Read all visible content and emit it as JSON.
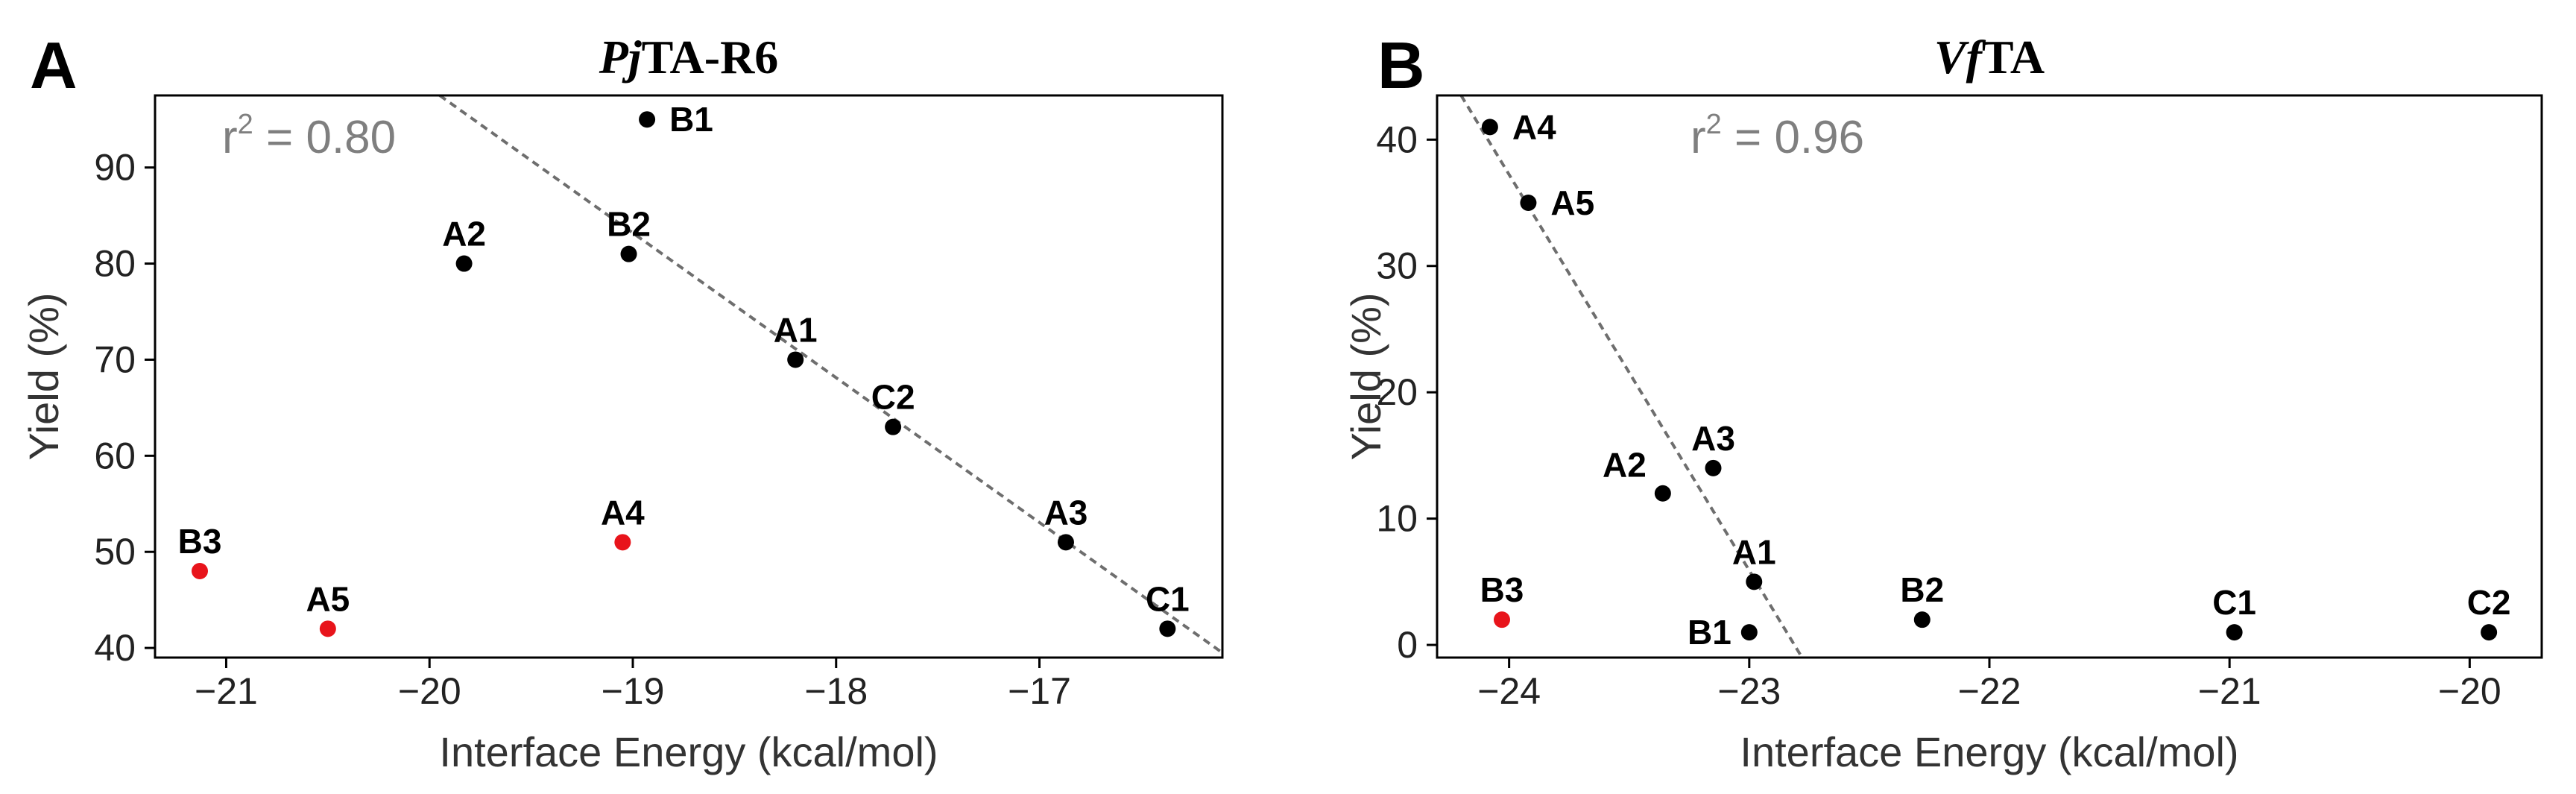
{
  "colors": {
    "axis": "#000000",
    "point_default": "#000000",
    "point_highlight": "#e8141b",
    "fit_line": "#6e6e6e",
    "r2_text": "#7f7f7f"
  },
  "chart_data": [
    {
      "type": "scatter",
      "panel_letter": "A",
      "title_italic": "Pj",
      "title_rest": "TA-R6",
      "xlabel": "Interface Energy (kcal/mol)",
      "ylabel": "Yield (%)",
      "xlim": [
        -21.35,
        -16.1
      ],
      "ylim": [
        39,
        97.5
      ],
      "xticks": [
        -21,
        -20,
        -19,
        -18,
        -17
      ],
      "xtick_labels": [
        "−21",
        "−20",
        "−19",
        "−18",
        "−17"
      ],
      "yticks": [
        40,
        50,
        60,
        70,
        80,
        90
      ],
      "ytick_labels": [
        "40",
        "50",
        "60",
        "70",
        "80",
        "90"
      ],
      "r2_label": "r",
      "r2_sup": "2",
      "r2_value": " = 0.80",
      "grid": false,
      "points": [
        {
          "label": "B1",
          "x": -18.93,
          "y": 95,
          "color": "black",
          "label_pos": "right"
        },
        {
          "label": "B2",
          "x": -19.02,
          "y": 81,
          "color": "black",
          "label_pos": "above"
        },
        {
          "label": "A2",
          "x": -19.83,
          "y": 80,
          "color": "black",
          "label_pos": "above"
        },
        {
          "label": "A1",
          "x": -18.2,
          "y": 70,
          "color": "black",
          "label_pos": "above"
        },
        {
          "label": "C2",
          "x": -17.72,
          "y": 63,
          "color": "black",
          "label_pos": "above"
        },
        {
          "label": "A3",
          "x": -16.87,
          "y": 51,
          "color": "black",
          "label_pos": "above"
        },
        {
          "label": "C1",
          "x": -16.37,
          "y": 42,
          "color": "black",
          "label_pos": "above"
        },
        {
          "label": "B3",
          "x": -21.13,
          "y": 48,
          "color": "red",
          "label_pos": "above"
        },
        {
          "label": "A5",
          "x": -20.5,
          "y": 42,
          "color": "red",
          "label_pos": "above"
        },
        {
          "label": "A4",
          "x": -19.05,
          "y": 51,
          "color": "red",
          "label_pos": "above"
        }
      ],
      "fit_line": {
        "x": [
          -19.95,
          -16.1
        ],
        "y": [
          97.5,
          39.5
        ]
      }
    },
    {
      "type": "scatter",
      "panel_letter": "B",
      "title_italic": "Vf",
      "title_rest": "TA",
      "xlabel": "Interface Energy (kcal/mol)",
      "ylabel": "Yield (%)",
      "xlim": [
        -24.3,
        -19.7
      ],
      "ylim": [
        -1,
        43.5
      ],
      "xticks": [
        -24,
        -23,
        -22,
        -21,
        -20
      ],
      "xtick_labels": [
        "−24",
        "−23",
        "−22",
        "−21",
        "−20"
      ],
      "yticks": [
        0,
        10,
        20,
        30,
        40
      ],
      "ytick_labels": [
        "0",
        "10",
        "20",
        "30",
        "40"
      ],
      "r2_label": "r",
      "r2_sup": "2",
      "r2_value": " = 0.96",
      "grid": false,
      "points": [
        {
          "label": "A4",
          "x": -24.08,
          "y": 41,
          "color": "black",
          "label_pos": "right"
        },
        {
          "label": "A5",
          "x": -23.92,
          "y": 35,
          "color": "black",
          "label_pos": "right"
        },
        {
          "label": "A3",
          "x": -23.15,
          "y": 14,
          "color": "black",
          "label_pos": "above"
        },
        {
          "label": "A2",
          "x": -23.36,
          "y": 12,
          "color": "black",
          "label_pos": "aboveleft"
        },
        {
          "label": "A1",
          "x": -22.98,
          "y": 5,
          "color": "black",
          "label_pos": "above"
        },
        {
          "label": "B1",
          "x": -23.0,
          "y": 1,
          "color": "black",
          "label_pos": "left"
        },
        {
          "label": "B2",
          "x": -22.28,
          "y": 2,
          "color": "black",
          "label_pos": "above"
        },
        {
          "label": "C1",
          "x": -20.98,
          "y": 1,
          "color": "black",
          "label_pos": "above"
        },
        {
          "label": "C2",
          "x": -19.92,
          "y": 1,
          "color": "black",
          "label_pos": "above"
        },
        {
          "label": "B3",
          "x": -24.03,
          "y": 2,
          "color": "red",
          "label_pos": "above"
        }
      ],
      "fit_line": {
        "x": [
          -24.2,
          -22.78
        ],
        "y": [
          43.5,
          -1
        ]
      }
    }
  ]
}
